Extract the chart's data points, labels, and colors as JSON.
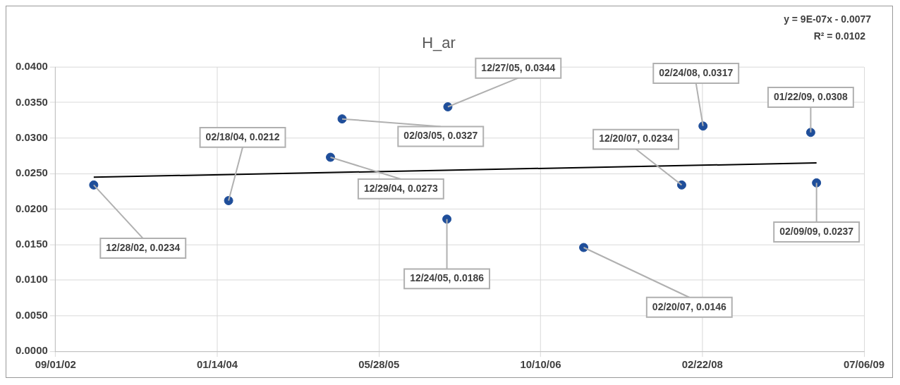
{
  "chart_data": {
    "type": "scatter",
    "title": "H_ar",
    "annotations": [
      "y = 9E-07x - 0.0077",
      "R² = 0.0102"
    ],
    "x": [
      "2002-12-28",
      "2004-02-18",
      "2004-12-29",
      "2005-02-03",
      "2005-12-24",
      "2005-12-27",
      "2007-02-20",
      "2007-12-20",
      "2008-02-24",
      "2009-01-22",
      "2009-02-09"
    ],
    "xlim": [
      "2002-09-01",
      "2009-07-06"
    ],
    "xticks": [
      {
        "value": "2002-09-01",
        "label": "09/01/02"
      },
      {
        "value": "2004-01-14",
        "label": "01/14/04"
      },
      {
        "value": "2005-05-28",
        "label": "05/28/05"
      },
      {
        "value": "2006-10-10",
        "label": "10/10/06"
      },
      {
        "value": "2008-02-22",
        "label": "02/22/08"
      },
      {
        "value": "2009-07-06",
        "label": "07/06/09"
      }
    ],
    "ylim": [
      0,
      0.04
    ],
    "yticks": [
      {
        "value": 0,
        "label": "0.0000"
      },
      {
        "value": 0.005,
        "label": "0.0050"
      },
      {
        "value": 0.01,
        "label": "0.0100"
      },
      {
        "value": 0.015,
        "label": "0.0150"
      },
      {
        "value": 0.02,
        "label": "0.0200"
      },
      {
        "value": 0.025,
        "label": "0.0250"
      },
      {
        "value": 0.03,
        "label": "0.0300"
      },
      {
        "value": 0.035,
        "label": "0.0350"
      },
      {
        "value": 0.04,
        "label": "0.0400"
      }
    ],
    "grid": true,
    "legend": false,
    "marker": "circle",
    "series": [
      {
        "color": "#1f4e9a",
        "values": [
          0.0234,
          0.0212,
          0.0273,
          0.0327,
          0.0186,
          0.0344,
          0.0146,
          0.0234,
          0.0317,
          0.0308,
          0.0237
        ],
        "value_labels": [
          "12/28/02, 0.0234",
          "02/18/04, 0.0212",
          "12/29/04, 0.0273",
          "02/03/05, 0.0327",
          "12/24/05, 0.0186",
          "12/27/05, 0.0344",
          "02/20/07, 0.0146",
          "12/20/07, 0.0234",
          "02/24/08, 0.0317",
          "01/22/09, 0.0308",
          "02/09/09, 0.0237"
        ]
      },
      {
        "type": "line",
        "marker": "none",
        "color": "#000000",
        "x": [
          "2002-12-28",
          "2009-02-09"
        ],
        "values": [
          0.0245,
          0.0265
        ]
      }
    ]
  }
}
